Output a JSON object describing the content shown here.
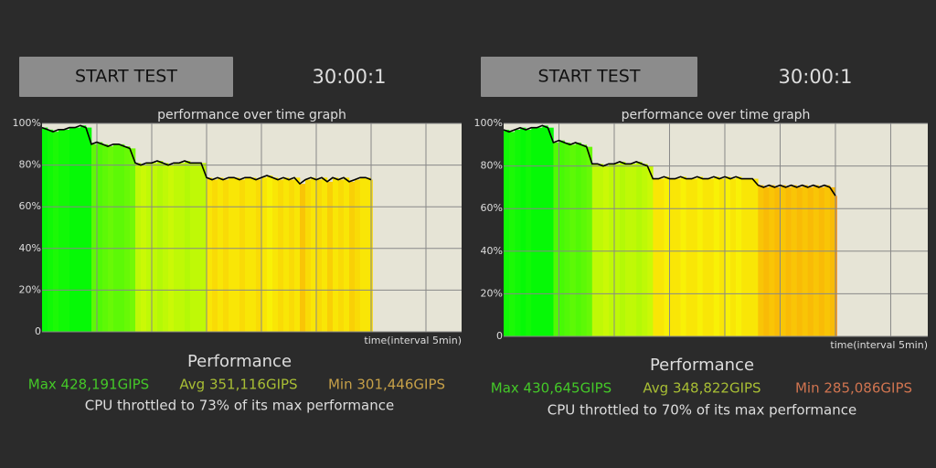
{
  "panels": [
    {
      "button": "START TEST",
      "timer": "30:00:1",
      "chart": {
        "type": "line",
        "title": "performance over time graph",
        "x_label": "time(interval 5min)",
        "xlim": [
          0,
          38.25
        ],
        "xticks": [
          5,
          10,
          15,
          20,
          25,
          30,
          35
        ],
        "ylim": [
          0,
          100
        ],
        "yticks": [
          0,
          {
            "value": 20,
            "label": "20%"
          },
          {
            "value": 40,
            "label": "40%"
          },
          {
            "value": 60,
            "label": "60%"
          },
          {
            "value": 80,
            "label": "80%"
          },
          {
            "value": 100,
            "label": "100%"
          }
        ],
        "grid": true,
        "line_color": "#000000",
        "x": [
          0,
          0.5,
          1,
          1.5,
          2,
          2.5,
          3,
          3.5,
          4,
          4.5,
          5,
          5.5,
          6,
          6.5,
          7,
          7.5,
          8,
          8.5,
          9,
          9.5,
          10,
          10.5,
          11,
          11.5,
          12,
          12.5,
          13,
          13.5,
          14,
          14.5,
          15,
          15.5,
          16,
          16.5,
          17,
          17.5,
          18,
          18.5,
          19,
          19.5,
          20,
          20.5,
          21,
          21.5,
          22,
          22.5,
          23,
          23.5,
          24,
          24.5,
          25,
          25.5,
          26,
          26.5,
          27,
          27.5,
          28,
          28.5,
          29,
          29.5,
          30
        ],
        "values": [
          98,
          97,
          96,
          97,
          97,
          98,
          98,
          99,
          98,
          90,
          91,
          90,
          89,
          90,
          90,
          89,
          88,
          81,
          80,
          81,
          81,
          82,
          81,
          80,
          81,
          81,
          82,
          81,
          81,
          81,
          74,
          73,
          74,
          73,
          74,
          74,
          73,
          74,
          74,
          73,
          74,
          75,
          74,
          73,
          74,
          73,
          74,
          71,
          73,
          74,
          73,
          74,
          72,
          74,
          73,
          74,
          72,
          73,
          74,
          74,
          73
        ]
      },
      "stats": {
        "heading": "Performance",
        "max": {
          "text": "Max 428,191GIPS",
          "color": "#44c828"
        },
        "avg": {
          "text": "Avg 351,116GIPS",
          "color": "#a8be34"
        },
        "min": {
          "text": "Min 301,446GIPS",
          "color": "#c6a048"
        },
        "throttle": "CPU throttled to 73% of its max performance"
      }
    },
    {
      "button": "START TEST",
      "timer": "30:00:1",
      "chart": {
        "type": "line",
        "title": "performance over time graph",
        "x_label": "time(interval 5min)",
        "xlim": [
          0,
          38.35
        ],
        "xticks": [
          5,
          10,
          15,
          20,
          25,
          30,
          35
        ],
        "ylim": [
          0,
          100
        ],
        "yticks": [
          0,
          {
            "value": 20,
            "label": "20%"
          },
          {
            "value": 40,
            "label": "40%"
          },
          {
            "value": 60,
            "label": "60%"
          },
          {
            "value": 80,
            "label": "80%"
          },
          {
            "value": 100,
            "label": "100%"
          }
        ],
        "grid": true,
        "line_color": "#000000",
        "x": [
          0,
          0.5,
          1,
          1.5,
          2,
          2.5,
          3,
          3.5,
          4,
          4.5,
          5,
          5.5,
          6,
          6.5,
          7,
          7.5,
          8,
          8.5,
          9,
          9.5,
          10,
          10.5,
          11,
          11.5,
          12,
          12.5,
          13,
          13.5,
          14,
          14.5,
          15,
          15.5,
          16,
          16.5,
          17,
          17.5,
          18,
          18.5,
          19,
          19.5,
          20,
          20.5,
          21,
          21.5,
          22,
          22.5,
          23,
          23.5,
          24,
          24.5,
          25,
          25.5,
          26,
          26.5,
          27,
          27.5,
          28,
          28.5,
          29,
          29.5,
          30
        ],
        "values": [
          97,
          96,
          97,
          98,
          97,
          98,
          98,
          99,
          98,
          91,
          92,
          91,
          90,
          91,
          90,
          89,
          81,
          81,
          80,
          81,
          81,
          82,
          81,
          81,
          82,
          81,
          80,
          74,
          74,
          75,
          74,
          74,
          75,
          74,
          74,
          75,
          74,
          74,
          75,
          74,
          75,
          74,
          75,
          74,
          74,
          74,
          71,
          70,
          71,
          70,
          71,
          70,
          71,
          70,
          71,
          70,
          71,
          70,
          71,
          70,
          66
        ]
      },
      "stats": {
        "heading": "Performance",
        "max": {
          "text": "Max 430,645GIPS",
          "color": "#44c828"
        },
        "avg": {
          "text": "Avg 348,822GIPS",
          "color": "#a8be34"
        },
        "min": {
          "text": "Min 285,086GIPS",
          "color": "#d07450"
        },
        "throttle": "CPU throttled to 70% of its max performance"
      }
    }
  ]
}
